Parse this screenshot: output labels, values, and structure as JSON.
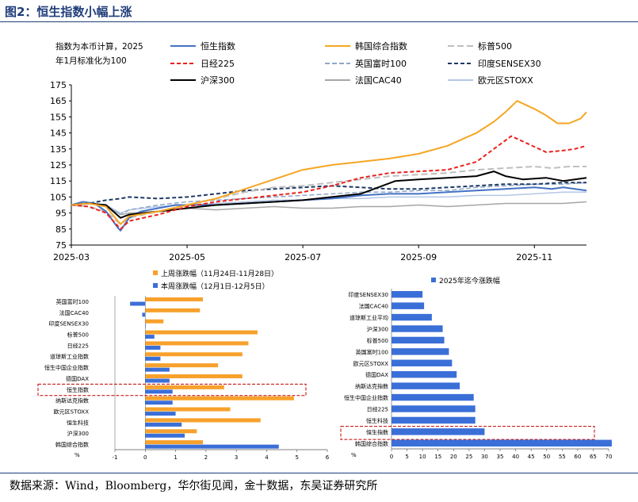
{
  "page": {
    "title": "图2：恒生指数小幅上涨",
    "source": "数据来源：Wind，Bloomberg，华尔街见闻，金十数据，东吴证券研究所"
  },
  "colors": {
    "title": "#1f3d7a",
    "hsi": "#4472C4",
    "kospi": "#F5A623",
    "sp500": "#BFBFBF",
    "nikkei": "#E8221E",
    "ftse": "#8FA7C8",
    "sensex": "#1F3864",
    "csi300": "#000000",
    "cac40": "#A6A6A6",
    "stoxx": "#B4C7E7",
    "bar_orange": "#F7A12C",
    "bar_blue": "#3B6FD8",
    "highlight": "#C00000"
  },
  "chart_data": [
    {
      "type": "line",
      "note": "指数为本币计算，2025年1月标准化为100",
      "ylim": [
        75,
        175
      ],
      "yticks": [
        75,
        85,
        95,
        105,
        115,
        125,
        135,
        145,
        155,
        165,
        175
      ],
      "xticks": [
        "2025-03",
        "2025-05",
        "2025-07",
        "2025-09",
        "2025-11"
      ],
      "xtick_pos": [
        0,
        2,
        4,
        6,
        8
      ],
      "xlim": [
        0,
        8.9
      ],
      "series": [
        {
          "name": "恒生指数",
          "key": "hsi",
          "dash": "",
          "width": 2,
          "x": [
            0,
            0.2,
            0.4,
            0.6,
            0.8,
            0.85,
            1.0,
            1.2,
            1.5,
            1.8,
            2.0,
            2.5,
            3.0,
            3.5,
            4.0,
            4.5,
            5.0,
            5.5,
            6.0,
            6.5,
            7.0,
            7.5,
            8.0,
            8.3,
            8.5,
            8.7,
            8.9
          ],
          "y": [
            100,
            102,
            101,
            96,
            86,
            84,
            92,
            96,
            98,
            100,
            100,
            100,
            101,
            102,
            103,
            104,
            106,
            107,
            107,
            108,
            109,
            110,
            111,
            110,
            111,
            110,
            109
          ]
        },
        {
          "name": "韩国综合指数",
          "key": "kospi",
          "dash": "",
          "width": 2,
          "x": [
            0,
            0.3,
            0.6,
            0.85,
            1.0,
            1.5,
            2.0,
            2.5,
            3.0,
            3.5,
            4.0,
            4.5,
            5.0,
            5.5,
            6.0,
            6.5,
            7.0,
            7.3,
            7.5,
            7.7,
            8.0,
            8.2,
            8.4,
            8.6,
            8.8,
            8.9
          ],
          "y": [
            100,
            101,
            99,
            88,
            93,
            96,
            100,
            104,
            110,
            116,
            122,
            125,
            127,
            129,
            132,
            137,
            145,
            152,
            158,
            165,
            160,
            156,
            151,
            151,
            154,
            158
          ]
        },
        {
          "name": "标普500",
          "key": "sp500",
          "dash": "8,4",
          "width": 2,
          "x": [
            0,
            0.3,
            0.6,
            0.85,
            1.0,
            1.5,
            2.0,
            2.5,
            3.0,
            3.5,
            4.0,
            4.5,
            5.0,
            5.5,
            6.0,
            6.5,
            7.0,
            7.5,
            8.0,
            8.3,
            8.6,
            8.9
          ],
          "y": [
            100,
            99,
            96,
            88,
            92,
            96,
            100,
            104,
            108,
            111,
            112,
            114,
            116,
            118,
            119,
            120,
            122,
            123,
            124,
            123,
            124,
            124
          ]
        },
        {
          "name": "日经225",
          "key": "nikkei",
          "dash": "5,3",
          "width": 2,
          "x": [
            0,
            0.3,
            0.6,
            0.85,
            1.0,
            1.5,
            2.0,
            2.5,
            3.0,
            3.5,
            4.0,
            4.5,
            5.0,
            5.5,
            6.0,
            6.5,
            7.0,
            7.3,
            7.6,
            7.9,
            8.2,
            8.5,
            8.7,
            8.9
          ],
          "y": [
            100,
            99,
            95,
            85,
            90,
            94,
            99,
            102,
            104,
            106,
            108,
            112,
            117,
            120,
            121,
            122,
            127,
            135,
            143,
            138,
            133,
            134,
            135,
            137
          ]
        },
        {
          "name": "英国富时100",
          "key": "ftse",
          "dash": "6,3",
          "width": 1.5,
          "x": [
            0,
            0.3,
            0.6,
            0.85,
            1.0,
            1.5,
            2.0,
            2.5,
            3.0,
            3.5,
            4.0,
            4.5,
            5.0,
            5.5,
            6.0,
            6.5,
            7.0,
            7.5,
            8.0,
            8.5,
            8.9
          ],
          "y": [
            100,
            101,
            99,
            94,
            97,
            100,
            102,
            103,
            104,
            105,
            106,
            107,
            108,
            108,
            109,
            109,
            111,
            112,
            113,
            113,
            114
          ]
        },
        {
          "name": "印度SENSEX30",
          "key": "sensex",
          "dash": "5,3",
          "width": 2,
          "x": [
            0,
            0.3,
            0.6,
            0.85,
            1.0,
            1.5,
            2.0,
            2.5,
            3.0,
            3.5,
            4.0,
            4.5,
            5.0,
            5.5,
            6.0,
            6.5,
            7.0,
            7.5,
            8.0,
            8.5,
            8.9
          ],
          "y": [
            100,
            101,
            103,
            104,
            105,
            104,
            105,
            107,
            109,
            110,
            111,
            112,
            111,
            110,
            110,
            111,
            112,
            113,
            113,
            114,
            114
          ]
        },
        {
          "name": "沪深300",
          "key": "csi300",
          "dash": "",
          "width": 2,
          "x": [
            0,
            0.3,
            0.6,
            0.85,
            1.0,
            1.5,
            2.0,
            2.5,
            3.0,
            3.5,
            4.0,
            4.5,
            5.0,
            5.3,
            5.6,
            6.0,
            6.5,
            7.0,
            7.3,
            7.5,
            7.8,
            8.2,
            8.5,
            8.7,
            8.9
          ],
          "y": [
            100,
            101,
            100,
            92,
            94,
            96,
            98,
            100,
            101,
            102,
            103,
            105,
            107,
            111,
            115,
            116,
            117,
            118,
            121,
            118,
            116,
            117,
            115,
            116,
            117
          ]
        },
        {
          "name": "法国CAC40",
          "key": "cac40",
          "dash": "",
          "width": 1.5,
          "x": [
            0,
            0.3,
            0.6,
            0.85,
            1.0,
            1.5,
            2.0,
            2.5,
            3.0,
            3.5,
            4.0,
            4.5,
            5.0,
            5.5,
            6.0,
            6.5,
            7.0,
            7.5,
            8.0,
            8.5,
            8.9
          ],
          "y": [
            100,
            101,
            100,
            94,
            95,
            96,
            98,
            97,
            98,
            99,
            98,
            98,
            99,
            99,
            100,
            99,
            100,
            101,
            101,
            101,
            102
          ]
        },
        {
          "name": "欧元区STOXX",
          "key": "stoxx",
          "dash": "",
          "width": 1.5,
          "x": [
            0,
            0.3,
            0.6,
            0.85,
            1.0,
            1.5,
            2.0,
            2.5,
            3.0,
            3.5,
            4.0,
            4.5,
            5.0,
            5.5,
            6.0,
            6.5,
            7.0,
            7.5,
            8.0,
            8.5,
            8.9
          ],
          "y": [
            100,
            101,
            100,
            95,
            97,
            99,
            100,
            101,
            102,
            103,
            103,
            104,
            104,
            105,
            105,
            105,
            106,
            106,
            107,
            108,
            108
          ]
        }
      ]
    },
    {
      "type": "bar",
      "orientation": "horizontal",
      "legend": [
        "上周涨跌幅（11月24日-11月28日）",
        "本周涨跌幅（12月1日-12月5日）"
      ],
      "categories": [
        "英国富时100",
        "法国CAC40",
        "印度SENSEX30",
        "标普500",
        "日经225",
        "道琼斯工业指数",
        "恒生中国企业指数",
        "德国DAX",
        "恒生指数",
        "纳斯达克指数",
        "欧元区STOXX",
        "恒生科技",
        "沪深300",
        "韩国综合指数"
      ],
      "series": [
        {
          "name": "上周涨跌幅（11月24日-11月28日）",
          "values": [
            1.9,
            1.8,
            0.6,
            3.7,
            3.4,
            3.2,
            2.4,
            3.2,
            2.6,
            4.9,
            2.8,
            3.8,
            1.7,
            1.9
          ]
        },
        {
          "name": "本周涨跌幅（12月1日-12月5日）",
          "values": [
            -0.5,
            -0.1,
            0.0,
            0.3,
            0.5,
            0.5,
            0.8,
            0.8,
            0.9,
            0.9,
            1.0,
            1.2,
            1.3,
            4.4
          ]
        }
      ],
      "highlight": "恒生指数",
      "xlim": [
        -1,
        6
      ],
      "xticks": [
        -1,
        0,
        1,
        2,
        3,
        4,
        5,
        6
      ],
      "ylabel": "%"
    },
    {
      "type": "bar",
      "orientation": "horizontal",
      "legend": [
        "2025年迄今涨跌幅"
      ],
      "categories": [
        "印度SENSEX30",
        "法国CAC40",
        "道琼斯工业平均",
        "沪深300",
        "标普500",
        "英国富时100",
        "欧元区STOXX",
        "德国DAX",
        "纳斯达克指数",
        "恒生中国企业指数",
        "日经225",
        "恒生科技",
        "恒生指数",
        "韩国综合指数"
      ],
      "values": [
        10,
        10.5,
        13,
        16.5,
        17,
        18.5,
        19.5,
        21,
        22,
        26.5,
        27,
        27,
        30,
        71
      ],
      "highlight": "恒生指数",
      "xlim": [
        0,
        70
      ],
      "xticks": [
        0,
        5,
        10,
        15,
        20,
        25,
        30,
        35,
        40,
        45,
        50,
        55,
        60,
        65,
        70
      ],
      "ylabel": "%"
    }
  ]
}
